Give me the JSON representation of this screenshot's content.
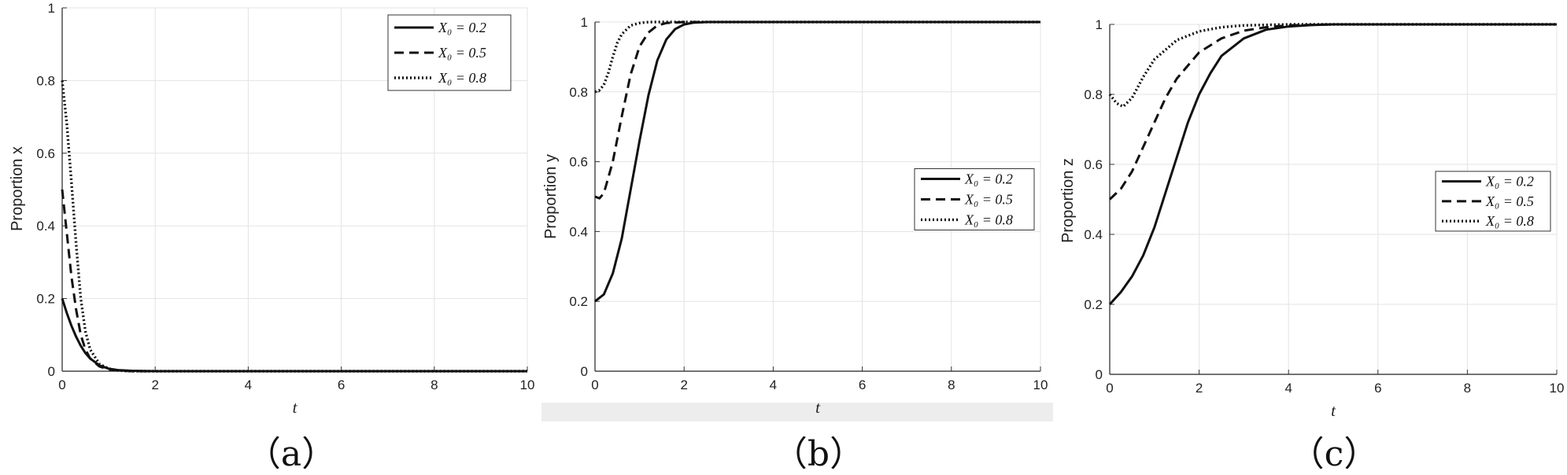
{
  "chart_data": [
    {
      "type": "line",
      "caption": "（a）",
      "xlabel": "t",
      "ylabel": "Proportion x",
      "xlim": [
        0,
        10
      ],
      "ylim": [
        0,
        1
      ],
      "xticks": [
        "0",
        "2",
        "4",
        "6",
        "8",
        "10"
      ],
      "yticks": [
        "0",
        "0.2",
        "0.4",
        "0.6",
        "0.8",
        "1"
      ],
      "grid": true,
      "legend_position": "top-right",
      "legend_entries": [
        "X₀ = 0.2",
        "X₀ = 0.5",
        "X₀ = 0.8"
      ],
      "series": [
        {
          "name": "X₀ = 0.2",
          "line_style": "solid",
          "x": [
            0,
            0.1,
            0.2,
            0.3,
            0.4,
            0.5,
            0.6,
            0.8,
            1.0,
            1.2,
            1.5,
            2,
            4,
            6,
            8,
            10
          ],
          "y": [
            0.2,
            0.16,
            0.125,
            0.095,
            0.07,
            0.05,
            0.035,
            0.016,
            0.007,
            0.003,
            0.001,
            0,
            0,
            0,
            0,
            0
          ]
        },
        {
          "name": "X₀ = 0.5",
          "line_style": "dashed",
          "x": [
            0,
            0.1,
            0.2,
            0.3,
            0.4,
            0.5,
            0.6,
            0.8,
            1.0,
            1.2,
            1.5,
            2,
            4,
            6,
            8,
            10
          ],
          "y": [
            0.5,
            0.38,
            0.26,
            0.17,
            0.1,
            0.06,
            0.035,
            0.013,
            0.005,
            0.002,
            0,
            0,
            0,
            0,
            0,
            0
          ]
        },
        {
          "name": "X₀ = 0.8",
          "line_style": "dotted",
          "x": [
            0,
            0.1,
            0.2,
            0.3,
            0.4,
            0.5,
            0.6,
            0.8,
            1.0,
            1.2,
            1.5,
            2,
            4,
            6,
            8,
            10
          ],
          "y": [
            0.8,
            0.68,
            0.52,
            0.35,
            0.2,
            0.11,
            0.06,
            0.02,
            0.007,
            0.002,
            0,
            0,
            0,
            0,
            0,
            0
          ]
        }
      ]
    },
    {
      "type": "line",
      "caption": "（b）",
      "xlabel": "t",
      "ylabel": "Proportion y",
      "xlim": [
        0,
        10
      ],
      "ylim": [
        0,
        1
      ],
      "xticks": [
        "0",
        "2",
        "4",
        "6",
        "8",
        "10"
      ],
      "yticks": [
        "0",
        "0.2",
        "0.4",
        "0.6",
        "0.8",
        "1"
      ],
      "grid": true,
      "legend_position": "center-right",
      "legend_entries": [
        "X₀ = 0.2",
        "X₀ = 0.5",
        "X₀ = 0.8"
      ],
      "series": [
        {
          "name": "X₀ = 0.2",
          "line_style": "solid",
          "x": [
            0,
            0.2,
            0.4,
            0.6,
            0.8,
            1.0,
            1.2,
            1.4,
            1.6,
            1.8,
            2.0,
            2.2,
            2.5,
            3,
            4,
            6,
            8,
            10
          ],
          "y": [
            0.2,
            0.22,
            0.28,
            0.38,
            0.52,
            0.66,
            0.79,
            0.89,
            0.95,
            0.98,
            0.993,
            0.998,
            1,
            1,
            1,
            1,
            1,
            1
          ]
        },
        {
          "name": "X₀ = 0.5",
          "line_style": "dashed",
          "x": [
            0,
            0.1,
            0.2,
            0.4,
            0.6,
            0.8,
            1.0,
            1.2,
            1.4,
            1.6,
            2.0,
            2.5,
            4,
            6,
            8,
            10
          ],
          "y": [
            0.5,
            0.495,
            0.51,
            0.6,
            0.73,
            0.85,
            0.93,
            0.97,
            0.99,
            0.997,
            1,
            1,
            1,
            1,
            1,
            1
          ]
        },
        {
          "name": "X₀ = 0.8",
          "line_style": "dotted",
          "x": [
            0,
            0.1,
            0.2,
            0.3,
            0.4,
            0.5,
            0.6,
            0.8,
            1.0,
            1.2,
            1.5,
            2,
            4,
            6,
            8,
            10
          ],
          "y": [
            0.8,
            0.805,
            0.82,
            0.855,
            0.9,
            0.94,
            0.965,
            0.99,
            0.997,
            1,
            1,
            1,
            1,
            1,
            1,
            1
          ]
        }
      ]
    },
    {
      "type": "line",
      "caption": "（c）",
      "xlabel": "t",
      "ylabel": "Proportion z",
      "xlim": [
        0,
        10
      ],
      "ylim": [
        0,
        1
      ],
      "xticks": [
        "0",
        "2",
        "4",
        "6",
        "8",
        "10"
      ],
      "yticks": [
        "0",
        "0.2",
        "0.4",
        "0.6",
        "0.8",
        "1"
      ],
      "grid": true,
      "legend_position": "center-right",
      "legend_entries": [
        "X₀ = 0.2",
        "X₀ = 0.5",
        "X₀ = 0.8"
      ],
      "series": [
        {
          "name": "X₀ = 0.2",
          "line_style": "solid",
          "x": [
            0,
            0.25,
            0.5,
            0.75,
            1.0,
            1.25,
            1.5,
            1.75,
            2.0,
            2.25,
            2.5,
            3.0,
            3.5,
            4.0,
            4.5,
            5,
            6,
            8,
            10
          ],
          "y": [
            0.2,
            0.235,
            0.28,
            0.34,
            0.42,
            0.52,
            0.62,
            0.72,
            0.8,
            0.86,
            0.91,
            0.96,
            0.985,
            0.994,
            0.998,
            1,
            1,
            1,
            1
          ]
        },
        {
          "name": "X₀ = 0.5",
          "line_style": "dashed",
          "x": [
            0,
            0.25,
            0.5,
            0.75,
            1.0,
            1.25,
            1.5,
            2.0,
            2.5,
            3.0,
            3.5,
            4.0,
            5,
            6,
            8,
            10
          ],
          "y": [
            0.5,
            0.53,
            0.58,
            0.65,
            0.72,
            0.79,
            0.845,
            0.92,
            0.96,
            0.982,
            0.992,
            0.997,
            1,
            1,
            1,
            1
          ]
        },
        {
          "name": "X₀ = 0.8",
          "line_style": "dotted",
          "x": [
            0,
            0.15,
            0.3,
            0.5,
            0.75,
            1.0,
            1.5,
            2.0,
            2.5,
            3.0,
            4.0,
            5,
            6,
            8,
            10
          ],
          "y": [
            0.8,
            0.775,
            0.765,
            0.79,
            0.85,
            0.9,
            0.955,
            0.98,
            0.992,
            0.997,
            1,
            1,
            1,
            1,
            1
          ]
        }
      ]
    }
  ]
}
